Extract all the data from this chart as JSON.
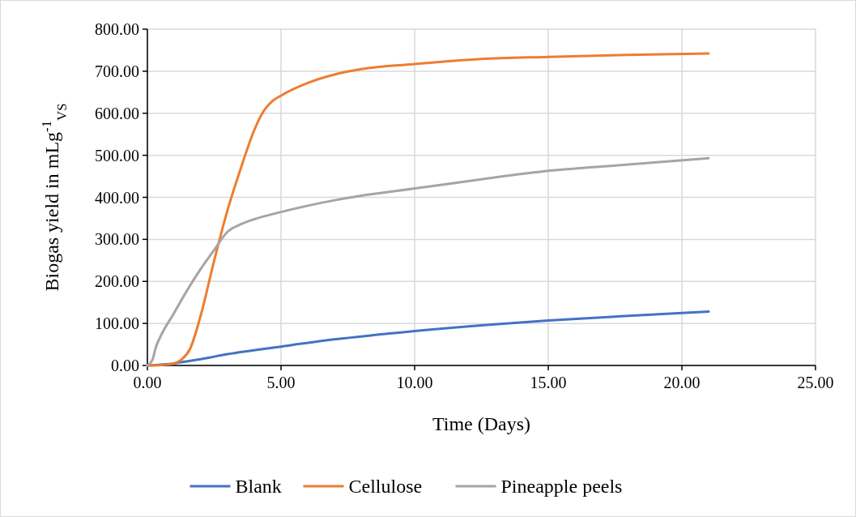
{
  "chart_data": {
    "type": "line",
    "xlabel": "Time (Days)",
    "ylabel": "Biogas yield in mLg$^{-1}$$_{VS}$",
    "xlim": [
      0,
      25
    ],
    "xticks": [
      {
        "value": 0,
        "label": "0.00"
      },
      {
        "value": 5,
        "label": "5.00"
      },
      {
        "value": 10,
        "label": "10.00"
      },
      {
        "value": 15,
        "label": "15.00"
      },
      {
        "value": 20,
        "label": "20.00"
      },
      {
        "value": 25,
        "label": "25.00"
      }
    ],
    "ylim": [
      0,
      800
    ],
    "yticks": [
      {
        "value": 0,
        "label": "0.00"
      },
      {
        "value": 100,
        "label": "100.00"
      },
      {
        "value": 200,
        "label": "200.00"
      },
      {
        "value": 300,
        "label": "300.00"
      },
      {
        "value": 400,
        "label": "400.00"
      },
      {
        "value": 500,
        "label": "500.00"
      },
      {
        "value": 600,
        "label": "600.00"
      },
      {
        "value": 700,
        "label": "700.00"
      },
      {
        "value": 800,
        "label": "800.00"
      }
    ],
    "grid": true,
    "legend": "bottom",
    "marker": "none",
    "line_style": "solid",
    "series": [
      {
        "name": "Blank",
        "color": "#4472c4",
        "x": [
          0,
          1,
          2,
          3,
          5,
          7,
          10,
          13,
          15,
          18,
          21
        ],
        "values": [
          0,
          5,
          15,
          27,
          45,
          62,
          82,
          98,
          107,
          118,
          128
        ]
      },
      {
        "name": "Cellulose",
        "color": "#ed7d31",
        "x": [
          0,
          0.5,
          1,
          1.3,
          1.6,
          2,
          2.5,
          3,
          3.5,
          4,
          4.3,
          4.7,
          5,
          6,
          7,
          8,
          10,
          12.5,
          15,
          18,
          21
        ],
        "values": [
          0,
          1,
          5,
          15,
          40,
          120,
          250,
          370,
          470,
          560,
          600,
          630,
          642,
          672,
          692,
          705,
          717,
          729,
          734,
          739,
          742
        ]
      },
      {
        "name": "Pineapple peels",
        "color": "#a5a5a5",
        "x": [
          0,
          0.2,
          0.3,
          0.5,
          1,
          1.5,
          2,
          2.5,
          3,
          3.5,
          4,
          5,
          6,
          7,
          8,
          10,
          12.5,
          15,
          18,
          21
        ],
        "values": [
          0,
          15,
          40,
          70,
          125,
          180,
          230,
          275,
          318,
          336,
          348,
          365,
          380,
          393,
          404,
          421,
          443,
          463,
          478,
          493
        ]
      }
    ]
  }
}
